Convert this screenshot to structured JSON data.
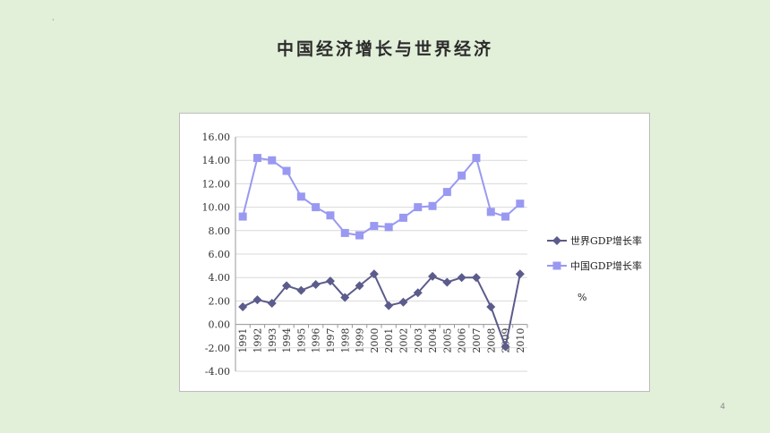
{
  "slide": {
    "mark": "·",
    "title": "中国经济增长与世界经济",
    "page_number": "4"
  },
  "chart_data": {
    "type": "line",
    "x": [
      "1991",
      "1992",
      "1993",
      "1994",
      "1995",
      "1996",
      "1997",
      "1998",
      "1999",
      "2000",
      "2001",
      "2002",
      "2003",
      "2004",
      "2005",
      "2006",
      "2007",
      "2008",
      "2009",
      "2010"
    ],
    "ylim": [
      -4,
      16
    ],
    "yticks": [
      "16.00",
      "14.00",
      "12.00",
      "10.00",
      "8.00",
      "6.00",
      "4.00",
      "2.00",
      "0.00",
      "-2.00",
      "-4.00"
    ],
    "grid": true,
    "legend_position": "right",
    "unit_label": "%",
    "series": [
      {
        "name": "世界GDP增长率",
        "marker": "diamond",
        "color": "#5b5b8c",
        "values": [
          1.5,
          2.1,
          1.8,
          3.3,
          2.9,
          3.4,
          3.7,
          2.3,
          3.3,
          4.3,
          1.6,
          1.9,
          2.7,
          4.1,
          3.6,
          4.0,
          4.0,
          1.5,
          -1.9,
          4.3
        ]
      },
      {
        "name": "中国GDP增长率",
        "marker": "square",
        "color": "#9999f2",
        "values": [
          9.2,
          14.2,
          14.0,
          13.1,
          10.9,
          10.0,
          9.3,
          7.8,
          7.6,
          8.4,
          8.3,
          9.1,
          10.0,
          10.1,
          11.3,
          12.7,
          14.2,
          9.6,
          9.2,
          10.3
        ]
      }
    ]
  }
}
